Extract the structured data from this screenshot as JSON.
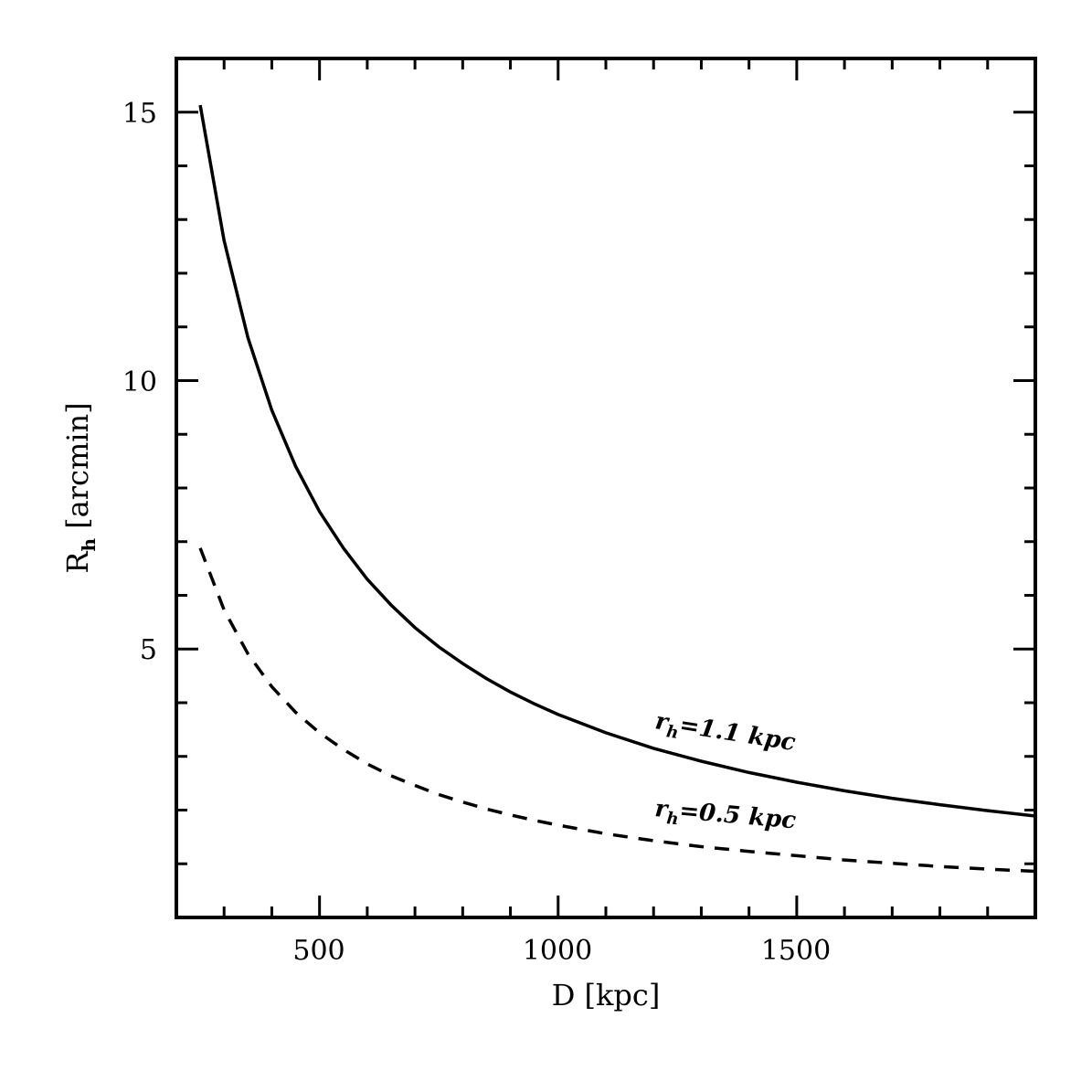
{
  "chart_data": {
    "type": "line",
    "title": "",
    "xlabel": "D [kpc]",
    "ylabel": "R_h [arcmin]",
    "xlim": [
      200,
      2000
    ],
    "ylim": [
      0,
      16
    ],
    "x_major_ticks": [
      500,
      1000,
      1500
    ],
    "x_minor_step": 100,
    "y_major_ticks": [
      5,
      10,
      15
    ],
    "y_minor_step": 1,
    "grid": false,
    "legend": null,
    "x": [
      250,
      300,
      350,
      400,
      450,
      500,
      550,
      600,
      650,
      700,
      750,
      800,
      850,
      900,
      950,
      1000,
      1100,
      1200,
      1300,
      1400,
      1500,
      1600,
      1700,
      1800,
      1900,
      2000
    ],
    "series": [
      {
        "name": "r_h=1.1 kpc",
        "style": "solid",
        "values": [
          15.13,
          12.61,
          10.8,
          9.45,
          8.4,
          7.56,
          6.88,
          6.3,
          5.82,
          5.4,
          5.04,
          4.73,
          4.45,
          4.2,
          3.98,
          3.78,
          3.44,
          3.15,
          2.91,
          2.7,
          2.52,
          2.36,
          2.22,
          2.1,
          1.99,
          1.89
        ]
      },
      {
        "name": "r_h=0.5 kpc",
        "style": "dashed",
        "values": [
          6.88,
          5.73,
          4.91,
          4.3,
          3.82,
          3.44,
          3.13,
          2.86,
          2.64,
          2.46,
          2.29,
          2.15,
          2.02,
          1.91,
          1.81,
          1.72,
          1.56,
          1.43,
          1.32,
          1.23,
          1.15,
          1.07,
          1.01,
          0.95,
          0.9,
          0.86
        ]
      }
    ],
    "annotations": [
      {
        "text_main": "r",
        "text_sub": "h",
        "text_rest": "=1.1 kpc",
        "x": 1200,
        "y": 3.4,
        "rotation": 9
      },
      {
        "text_main": "r",
        "text_sub": "h",
        "text_rest": "=0.5 kpc",
        "x": 1200,
        "y": 1.85,
        "rotation": 5
      }
    ]
  },
  "axes": {
    "x_tick_labels": [
      "500",
      "1000",
      "1500"
    ],
    "y_tick_labels": [
      "5",
      "10",
      "15"
    ],
    "xlabel": "D [kpc]",
    "ylabel_main": "R",
    "ylabel_sub": "h",
    "ylabel_rest": " [arcmin]"
  },
  "colors": {
    "line": "#000000",
    "frame": "#000000",
    "background": "#ffffff"
  }
}
